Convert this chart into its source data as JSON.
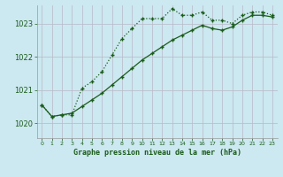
{
  "title": "Graphe pression niveau de la mer (hPa)",
  "bg_color": "#cce8f0",
  "grid_color": "#b8b8c8",
  "line_color": "#1a5c1a",
  "xlim": [
    -0.5,
    23.5
  ],
  "ylim": [
    1019.55,
    1023.55
  ],
  "yticks": [
    1020,
    1021,
    1022,
    1023
  ],
  "xticks": [
    0,
    1,
    2,
    3,
    4,
    5,
    6,
    7,
    8,
    9,
    10,
    11,
    12,
    13,
    14,
    15,
    16,
    17,
    18,
    19,
    20,
    21,
    22,
    23
  ],
  "series1_x": [
    0,
    1,
    2,
    3,
    4,
    5,
    6,
    7,
    8,
    9,
    10,
    11,
    12,
    13,
    14,
    15,
    16,
    17,
    18,
    19,
    20,
    21,
    22,
    23
  ],
  "series1_y": [
    1020.55,
    1020.2,
    1020.25,
    1020.25,
    1021.05,
    1021.25,
    1021.55,
    1022.05,
    1022.55,
    1022.85,
    1023.15,
    1023.15,
    1023.15,
    1023.45,
    1023.25,
    1023.25,
    1023.35,
    1023.1,
    1023.1,
    1023.0,
    1023.25,
    1023.35,
    1023.35,
    1023.25
  ],
  "series2_x": [
    0,
    1,
    2,
    3,
    4,
    5,
    6,
    7,
    8,
    9,
    10,
    11,
    12,
    13,
    14,
    15,
    16,
    17,
    18,
    19,
    20,
    21,
    22,
    23
  ],
  "series2_y": [
    1020.55,
    1020.2,
    1020.25,
    1020.3,
    1020.5,
    1020.7,
    1020.9,
    1021.15,
    1021.4,
    1021.65,
    1021.9,
    1022.1,
    1022.3,
    1022.5,
    1022.65,
    1022.8,
    1022.95,
    1022.85,
    1022.8,
    1022.9,
    1023.1,
    1023.25,
    1023.25,
    1023.2
  ]
}
